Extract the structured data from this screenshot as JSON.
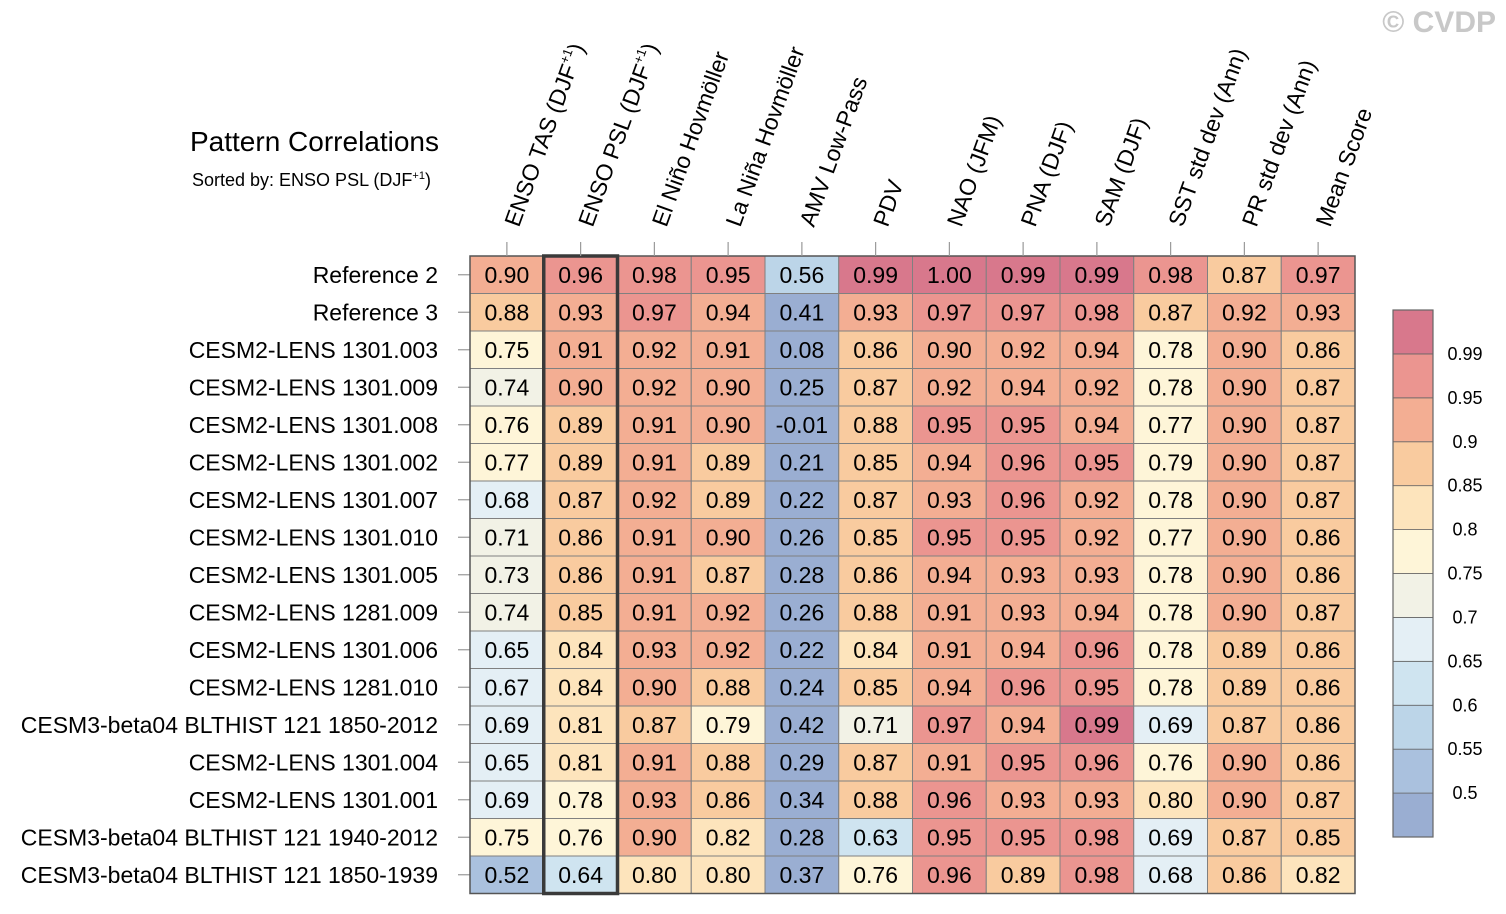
{
  "watermark": "© CVDP",
  "title": "Pattern Correlations",
  "subtitle_prefix": "Sorted by: ENSO PSL (DJF",
  "subtitle_sup": "+1",
  "subtitle_suffix": ")",
  "chart_data": {
    "type": "heatmap",
    "title": "Pattern Correlations",
    "sorted_by": "ENSO PSL (DJF+1)",
    "highlighted_column": 1,
    "columns": [
      {
        "label": "ENSO TAS (DJF",
        "sup": "+1",
        "suffix": ")"
      },
      {
        "label": "ENSO PSL (DJF",
        "sup": "+1",
        "suffix": ")"
      },
      {
        "label": "El Niño Hovmöller"
      },
      {
        "label": "La Niña Hovmöller"
      },
      {
        "label": "AMV Low-Pass"
      },
      {
        "label": "PDV"
      },
      {
        "label": "NAO (JFM)"
      },
      {
        "label": "PNA (DJF)"
      },
      {
        "label": "SAM (DJF)"
      },
      {
        "label": "SST std dev (Ann)"
      },
      {
        "label": "PR std dev (Ann)"
      },
      {
        "label": "Mean Score"
      }
    ],
    "rows": [
      {
        "label": "Reference 2",
        "values": [
          "0.90",
          "0.96",
          "0.98",
          "0.95",
          "0.56",
          "0.99",
          "1.00",
          "0.99",
          "0.99",
          "0.98",
          "0.87",
          "0.97"
        ]
      },
      {
        "label": "Reference 3",
        "values": [
          "0.88",
          "0.93",
          "0.97",
          "0.94",
          "0.41",
          "0.93",
          "0.97",
          "0.97",
          "0.98",
          "0.87",
          "0.92",
          "0.93"
        ]
      },
      {
        "label": "CESM2-LENS 1301.003",
        "values": [
          "0.75",
          "0.91",
          "0.92",
          "0.91",
          "0.08",
          "0.86",
          "0.90",
          "0.92",
          "0.94",
          "0.78",
          "0.90",
          "0.86"
        ]
      },
      {
        "label": "CESM2-LENS 1301.009",
        "values": [
          "0.74",
          "0.90",
          "0.92",
          "0.90",
          "0.25",
          "0.87",
          "0.92",
          "0.94",
          "0.92",
          "0.78",
          "0.90",
          "0.87"
        ]
      },
      {
        "label": "CESM2-LENS 1301.008",
        "values": [
          "0.76",
          "0.89",
          "0.91",
          "0.90",
          "-0.01",
          "0.88",
          "0.95",
          "0.95",
          "0.94",
          "0.77",
          "0.90",
          "0.87"
        ]
      },
      {
        "label": "CESM2-LENS 1301.002",
        "values": [
          "0.77",
          "0.89",
          "0.91",
          "0.89",
          "0.21",
          "0.85",
          "0.94",
          "0.96",
          "0.95",
          "0.79",
          "0.90",
          "0.87"
        ]
      },
      {
        "label": "CESM2-LENS 1301.007",
        "values": [
          "0.68",
          "0.87",
          "0.92",
          "0.89",
          "0.22",
          "0.87",
          "0.93",
          "0.96",
          "0.92",
          "0.78",
          "0.90",
          "0.87"
        ]
      },
      {
        "label": "CESM2-LENS 1301.010",
        "values": [
          "0.71",
          "0.86",
          "0.91",
          "0.90",
          "0.26",
          "0.85",
          "0.95",
          "0.95",
          "0.92",
          "0.77",
          "0.90",
          "0.86"
        ]
      },
      {
        "label": "CESM2-LENS 1301.005",
        "values": [
          "0.73",
          "0.86",
          "0.91",
          "0.87",
          "0.28",
          "0.86",
          "0.94",
          "0.93",
          "0.93",
          "0.78",
          "0.90",
          "0.86"
        ]
      },
      {
        "label": "CESM2-LENS 1281.009",
        "values": [
          "0.74",
          "0.85",
          "0.91",
          "0.92",
          "0.26",
          "0.88",
          "0.91",
          "0.93",
          "0.94",
          "0.78",
          "0.90",
          "0.87"
        ]
      },
      {
        "label": "CESM2-LENS 1301.006",
        "values": [
          "0.65",
          "0.84",
          "0.93",
          "0.92",
          "0.22",
          "0.84",
          "0.91",
          "0.94",
          "0.96",
          "0.78",
          "0.89",
          "0.86"
        ]
      },
      {
        "label": "CESM2-LENS 1281.010",
        "values": [
          "0.67",
          "0.84",
          "0.90",
          "0.88",
          "0.24",
          "0.85",
          "0.94",
          "0.96",
          "0.95",
          "0.78",
          "0.89",
          "0.86"
        ]
      },
      {
        "label": "CESM3-beta04 BLTHIST 121 1850-2012",
        "values": [
          "0.69",
          "0.81",
          "0.87",
          "0.79",
          "0.42",
          "0.71",
          "0.97",
          "0.94",
          "0.99",
          "0.69",
          "0.87",
          "0.86"
        ]
      },
      {
        "label": "CESM2-LENS 1301.004",
        "values": [
          "0.65",
          "0.81",
          "0.91",
          "0.88",
          "0.29",
          "0.87",
          "0.91",
          "0.95",
          "0.96",
          "0.76",
          "0.90",
          "0.86"
        ]
      },
      {
        "label": "CESM2-LENS 1301.001",
        "values": [
          "0.69",
          "0.78",
          "0.93",
          "0.86",
          "0.34",
          "0.88",
          "0.96",
          "0.93",
          "0.93",
          "0.80",
          "0.90",
          "0.87"
        ]
      },
      {
        "label": "CESM3-beta04 BLTHIST 121 1940-2012",
        "values": [
          "0.75",
          "0.76",
          "0.90",
          "0.82",
          "0.28",
          "0.63",
          "0.95",
          "0.95",
          "0.98",
          "0.69",
          "0.87",
          "0.85"
        ]
      },
      {
        "label": "CESM3-beta04 BLTHIST 121 1850-1939",
        "values": [
          "0.52",
          "0.64",
          "0.80",
          "0.80",
          "0.37",
          "0.76",
          "0.96",
          "0.89",
          "0.98",
          "0.68",
          "0.86",
          "0.82"
        ]
      }
    ],
    "colorbar": {
      "levels": [
        0.5,
        0.55,
        0.6,
        0.65,
        0.7,
        0.75,
        0.8,
        0.85,
        0.9,
        0.95,
        0.99
      ],
      "labels": [
        "0.5",
        "0.55",
        "0.6",
        "0.65",
        "0.7",
        "0.75",
        "0.8",
        "0.85",
        "0.9",
        "0.95",
        "0.99"
      ],
      "colors": [
        "#9aaed2",
        "#aac1de",
        "#bcd5e8",
        "#cfe4f0",
        "#e4eff5",
        "#f2f2e6",
        "#fef5d8",
        "#fde4bc",
        "#f9cb9f",
        "#f3ae93",
        "#eb9590",
        "#d8788c"
      ]
    },
    "grid_color": "#808080",
    "highlight_color": "#3a3a3a"
  }
}
